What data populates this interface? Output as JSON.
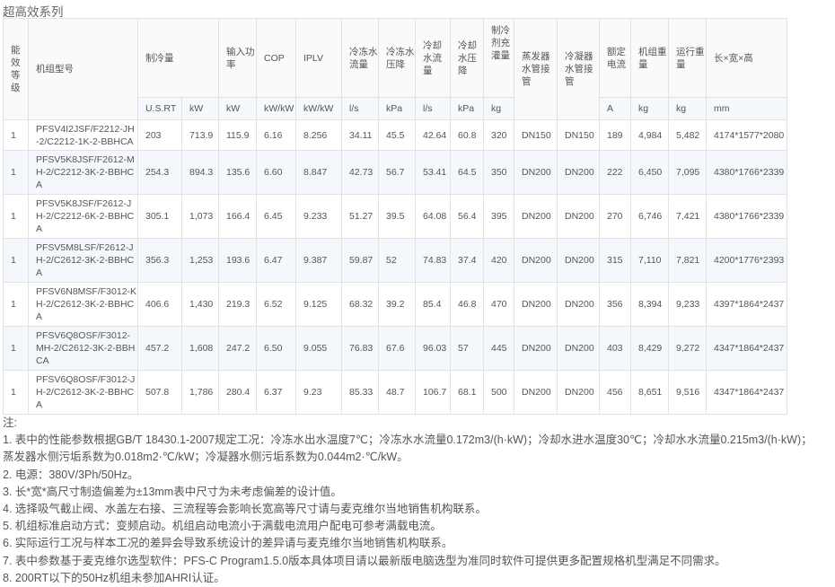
{
  "title": "超高效系列",
  "headers": {
    "grade": "能效等级",
    "model": "机组型号",
    "capacity": "制冷量",
    "power": "输入功率",
    "cop": "COP",
    "iplv": "IPLV",
    "chw_flow": "冷冻水流量",
    "chw_dp": "冷冻水压降",
    "cw_flow": "冷却水流量",
    "cw_dp": "冷却水压降",
    "refrigerant": "制冷剂充灌量",
    "evap_pipe": "蒸发器水管接管",
    "cond_pipe": "冷凝器水管接管",
    "current": "额定电流",
    "unit_weight": "机组重量",
    "op_weight": "运行重量",
    "dims": "长×宽×高"
  },
  "units": [
    "U.S.RT",
    "kW",
    "kW",
    "kW/kW",
    "kW/kW",
    "l/s",
    "kPa",
    "l/s",
    "kPa",
    "kg",
    "A",
    "kg",
    "kg",
    "mm"
  ],
  "rows": [
    [
      "1",
      "PFSV4I2JSF/F2212-JH-2/C2212-1K-2-BBHCA",
      "203",
      "713.9",
      "115.9",
      "6.16",
      "8.256",
      "34.11",
      "45.5",
      "42.64",
      "60.8",
      "320",
      "DN150",
      "DN150",
      "189",
      "4,984",
      "5,482",
      "4174*1577*2080"
    ],
    [
      "1",
      "PFSV5K8JSF/F2612-MH-2/C2212-3K-2-BBHCA",
      "254.3",
      "894.3",
      "135.6",
      "6.60",
      "8.847",
      "42.73",
      "56.7",
      "53.41",
      "64.5",
      "350",
      "DN200",
      "DN200",
      "222",
      "6,450",
      "7,095",
      "4380*1766*2339"
    ],
    [
      "1",
      "PFSV5K8JSF/F2612-JH-2/C2212-6K-2-BBHCA",
      "305.1",
      "1,073",
      "166.4",
      "6.45",
      "9.233",
      "51.27",
      "39.5",
      "64.08",
      "56.4",
      "395",
      "DN200",
      "DN200",
      "270",
      "6,746",
      "7,421",
      "4380*1766*2339"
    ],
    [
      "1",
      "PFSV5M8LSF/F2612-JH-2/C2612-3K-2-BBHCA",
      "356.3",
      "1,253",
      "193.6",
      "6.47",
      "9.387",
      "59.87",
      "52",
      "74.83",
      "37.4",
      "420",
      "DN200",
      "DN200",
      "315",
      "7,110",
      "7,821",
      "4200*1776*2393"
    ],
    [
      "1",
      "PFSV6N8MSF/F3012-KH-2/C2612-3K-2-BBHCA",
      "406.6",
      "1,430",
      "219.3",
      "6.52",
      "9.125",
      "68.32",
      "39.2",
      "85.4",
      "46.8",
      "470",
      "DN200",
      "DN200",
      "356",
      "8,394",
      "9,233",
      "4397*1864*2437"
    ],
    [
      "1",
      "PFSV6Q8OSF/F3012-MH-2/C2612-3K-2-BBHCA",
      "457.2",
      "1,608",
      "247.2",
      "6.50",
      "9.055",
      "76.83",
      "67.6",
      "96.03",
      "57",
      "445",
      "DN200",
      "DN200",
      "403",
      "8,429",
      "9,272",
      "4347*1864*2437"
    ],
    [
      "1",
      "PFSV6Q8OSF/F3012-JH-2/C2612-3K-2-BBHCA",
      "507.8",
      "1,786",
      "280.4",
      "6.37",
      "9.23",
      "85.33",
      "48.7",
      "106.7",
      "68.1",
      "500",
      "DN200",
      "DN200",
      "456",
      "8,651",
      "9,516",
      "4347*1864*2437"
    ]
  ],
  "notes": [
    "注:",
    "1. 表中的性能参数根据GB/T 18430.1-2007规定工况：冷冻水出水温度7℃；冷冻水水流量0.172m3/(h·kW)；冷却水进水温度30℃；冷却水水流量0.215m3/(h·kW)；",
    "蒸发器水侧污垢系数为0.018m2·℃/kW；冷凝器水侧污垢系数为0.044m2·℃/kW。",
    "2. 电源：380V/3Ph/50Hz。",
    "3. 长*宽*高尺寸制造偏差为±13mm表中尺寸为未考虑偏差的设计值。",
    "4. 选择吸气截止阀、水盖左右接、三流程等会影响长宽高等尺寸请与麦克维尔当地销售机构联系。",
    "5. 机组标准启动方式：变频启动。机组启动电流小于满载电流用户配电可参考满载电流。",
    "6. 实际运行工况与样本工况的差异会导致系统设计的差异请与麦克维尔当地销售机构联系。",
    "7. 表中参数基于麦克维尔选型软件：PFS-C Program1.5.0版本具体项目请以最新版电脑选型为准同时软件可提供更多配置规格机型满足不同需求。",
    "8. 200RT以下的50Hz机组未参加AHRI认证。"
  ]
}
